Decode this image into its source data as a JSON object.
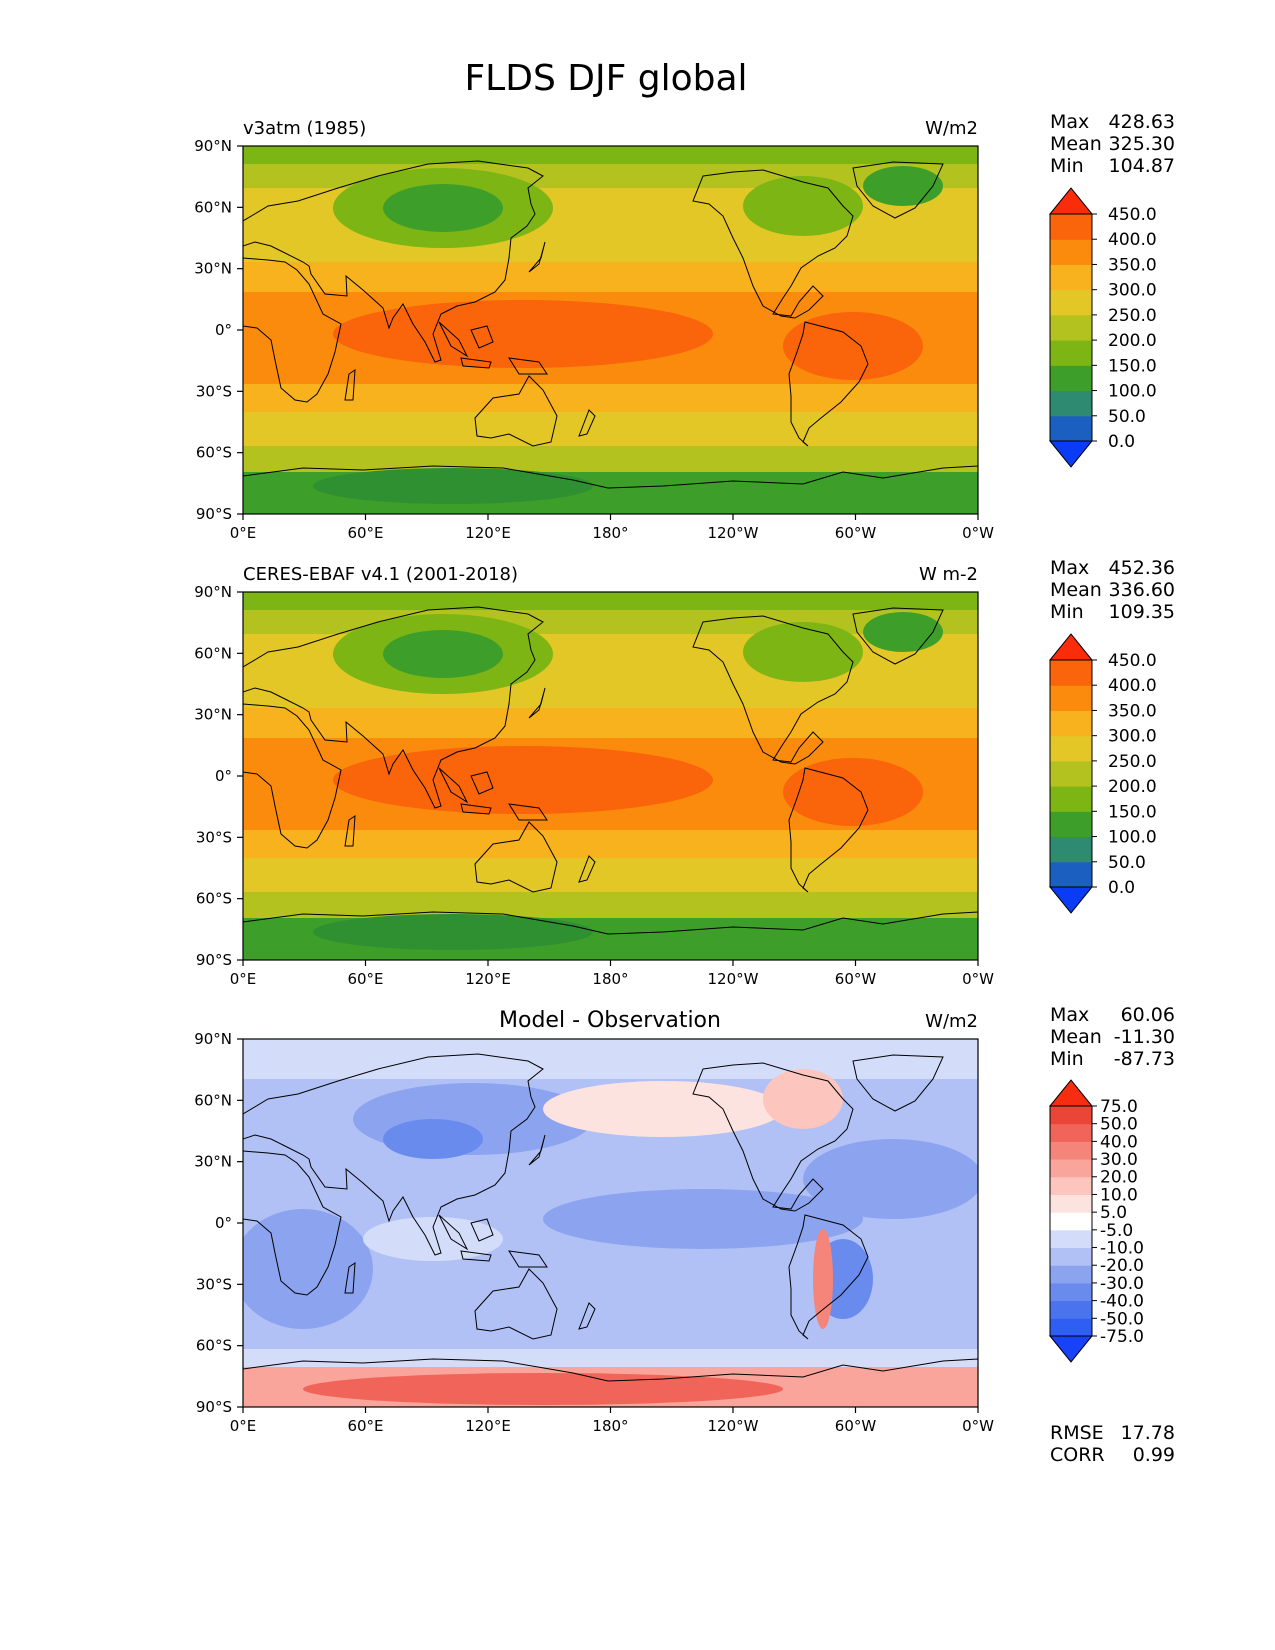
{
  "figure_title": "FLDS DJF global",
  "x_ticks": [
    "0°E",
    "60°E",
    "120°E",
    "180°",
    "120°W",
    "60°W",
    "0°W"
  ],
  "y_ticks": [
    "90°N",
    "60°N",
    "30°N",
    "0°",
    "30°S",
    "60°S",
    "90°S"
  ],
  "panels": [
    {
      "left_title": "v3atm (1985)",
      "center_title": "",
      "units": "W/m2",
      "stats": {
        "max_label": "Max",
        "max": "428.63",
        "mean_label": "Mean",
        "mean": "325.30",
        "min_label": "Min",
        "min": "104.87"
      },
      "colorbar": [
        "0.0",
        "50.0",
        "100.0",
        "150.0",
        "200.0",
        "250.0",
        "300.0",
        "350.0",
        "400.0",
        "450.0"
      ]
    },
    {
      "left_title": "CERES-EBAF v4.1 (2001-2018)",
      "center_title": "",
      "units": "W m-2",
      "stats": {
        "max_label": "Max",
        "max": "452.36",
        "mean_label": "Mean",
        "mean": "336.60",
        "min_label": "Min",
        "min": "109.35"
      },
      "colorbar": [
        "0.0",
        "50.0",
        "100.0",
        "150.0",
        "200.0",
        "250.0",
        "300.0",
        "350.0",
        "400.0",
        "450.0"
      ]
    },
    {
      "left_title": "",
      "center_title": "Model - Observation",
      "units": "W/m2",
      "stats": {
        "max_label": "Max",
        "max": "60.06",
        "mean_label": "Mean",
        "mean": "-11.30",
        "min_label": "Min",
        "min": "-87.73"
      },
      "colorbar": [
        "-75.0",
        "-50.0",
        "-40.0",
        "-30.0",
        "-20.0",
        "-10.0",
        "-5.0",
        "5.0",
        "10.0",
        "20.0",
        "30.0",
        "40.0",
        "50.0",
        "75.0"
      ],
      "rmse_label": "RMSE",
      "rmse": "17.78",
      "corr_label": "CORR",
      "corr": "0.99"
    }
  ],
  "colors": {
    "abs_scale": [
      "#0a3cf5",
      "#1b5fc0",
      "#2f8a72",
      "#3e9e2a",
      "#7db515",
      "#b3c21e",
      "#e3c726",
      "#f8b21d",
      "#fb8b0c",
      "#fa640a",
      "#fb2c0a"
    ],
    "diff_scale": [
      "#1842f8",
      "#2f5ff2",
      "#4a74ee",
      "#6a8bee",
      "#8ca4f0",
      "#b1c1f5",
      "#d3ddfa",
      "#ffffff",
      "#fde3e0",
      "#fcc5be",
      "#f9a59b",
      "#f5847a",
      "#f06459",
      "#ea4537",
      "#f62d10"
    ]
  }
}
